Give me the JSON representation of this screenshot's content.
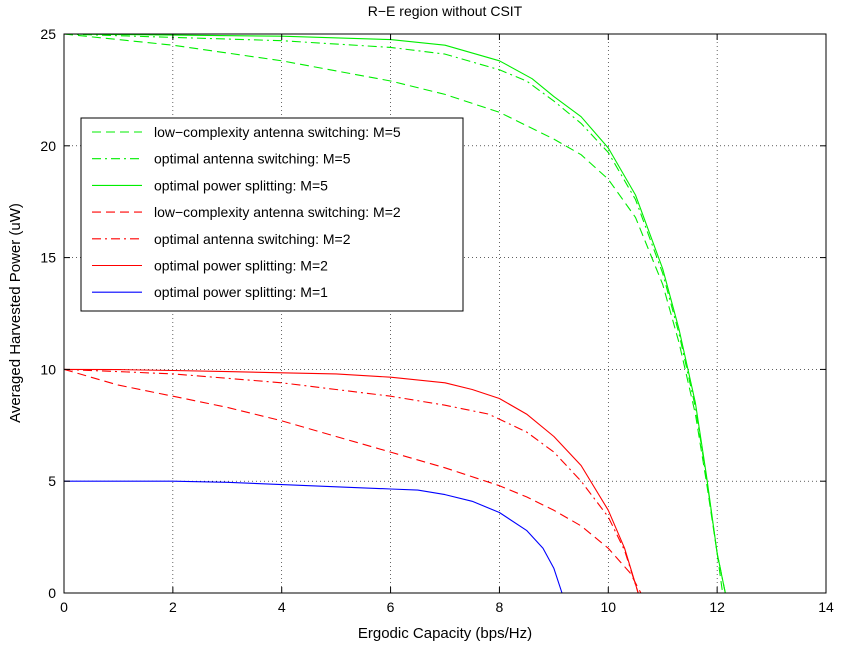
{
  "chart_data": {
    "type": "line",
    "title": "R−E region without CSIT",
    "xlabel": "Ergodic Capacity (bps/Hz)",
    "ylabel": "Averaged Harvested Power (uW)",
    "xlim": [
      0,
      14
    ],
    "ylim": [
      0,
      25
    ],
    "xticks": [
      0,
      2,
      4,
      6,
      8,
      10,
      12,
      14
    ],
    "yticks": [
      0,
      5,
      10,
      15,
      20,
      25
    ],
    "grid": true,
    "legend_position": "upper-left",
    "series": [
      {
        "name": "low−complexity antenna switching: M=5",
        "color": "#00ee00",
        "dash": "dashed",
        "x": [
          0,
          2,
          4,
          6,
          7,
          8,
          9,
          9.5,
          10,
          10.5,
          11,
          11.3,
          11.6,
          11.8,
          12.0,
          12.1
        ],
        "y": [
          25,
          24.5,
          23.8,
          22.9,
          22.3,
          21.5,
          20.3,
          19.6,
          18.5,
          16.8,
          13.8,
          11.2,
          8.0,
          5.0,
          1.8,
          0
        ]
      },
      {
        "name": "optimal antenna switching: M=5",
        "color": "#00ee00",
        "dash": "dashdot",
        "x": [
          0,
          2,
          4,
          6,
          7,
          8,
          8.5,
          9,
          9.5,
          10,
          10.5,
          11,
          11.3,
          11.6,
          11.8,
          12.0,
          12.15
        ],
        "y": [
          25,
          24.85,
          24.7,
          24.4,
          24.1,
          23.4,
          22.9,
          22.0,
          21.0,
          19.7,
          17.6,
          14.3,
          11.6,
          8.3,
          5.2,
          1.8,
          0
        ]
      },
      {
        "name": "optimal power splitting: M=5",
        "color": "#00ee00",
        "dash": "solid",
        "x": [
          0,
          2,
          4,
          6,
          7,
          8,
          8.6,
          9,
          9.5,
          10,
          10.5,
          11,
          11.3,
          11.6,
          11.8,
          12.0,
          12.15
        ],
        "y": [
          25,
          24.95,
          24.9,
          24.75,
          24.5,
          23.8,
          23.0,
          22.2,
          21.3,
          19.9,
          17.8,
          14.5,
          11.8,
          8.5,
          5.3,
          1.8,
          0
        ]
      },
      {
        "name": "low−complexity antenna switching: M=2",
        "color": "#ff0000",
        "dash": "dashed",
        "x": [
          0,
          1,
          2,
          3,
          4,
          5,
          6,
          7,
          8,
          8.5,
          9,
          9.5,
          10,
          10.4,
          10.6
        ],
        "y": [
          10,
          9.3,
          8.8,
          8.3,
          7.7,
          7.0,
          6.3,
          5.6,
          4.8,
          4.3,
          3.7,
          3.0,
          2.0,
          0.9,
          0
        ]
      },
      {
        "name": "optimal antenna switching: M=2",
        "color": "#ff0000",
        "dash": "dashdot",
        "x": [
          0,
          1,
          2,
          3,
          4,
          5,
          6,
          7,
          7.8,
          8.5,
          9,
          9.5,
          10,
          10.3,
          10.55
        ],
        "y": [
          10,
          9.9,
          9.8,
          9.6,
          9.4,
          9.1,
          8.8,
          8.4,
          8.0,
          7.2,
          6.3,
          5.0,
          3.4,
          1.9,
          0
        ]
      },
      {
        "name": "optimal power splitting: M=2",
        "color": "#ff0000",
        "dash": "solid",
        "x": [
          0,
          1,
          2,
          3,
          4,
          5,
          6,
          7,
          7.5,
          8,
          8.5,
          9,
          9.5,
          10,
          10.3,
          10.55
        ],
        "y": [
          10,
          9.99,
          9.95,
          9.9,
          9.85,
          9.8,
          9.65,
          9.4,
          9.1,
          8.7,
          8.0,
          7.0,
          5.7,
          3.7,
          2.0,
          0
        ]
      },
      {
        "name": "optimal power splitting: M=1",
        "color": "#0000ff",
        "dash": "solid",
        "x": [
          0,
          1,
          2,
          3,
          4,
          5,
          6,
          6.5,
          7,
          7.5,
          8,
          8.5,
          8.8,
          9.0,
          9.15
        ],
        "y": [
          5,
          5.0,
          5.0,
          4.95,
          4.85,
          4.75,
          4.65,
          4.6,
          4.4,
          4.1,
          3.6,
          2.8,
          2.0,
          1.1,
          0
        ]
      }
    ]
  }
}
